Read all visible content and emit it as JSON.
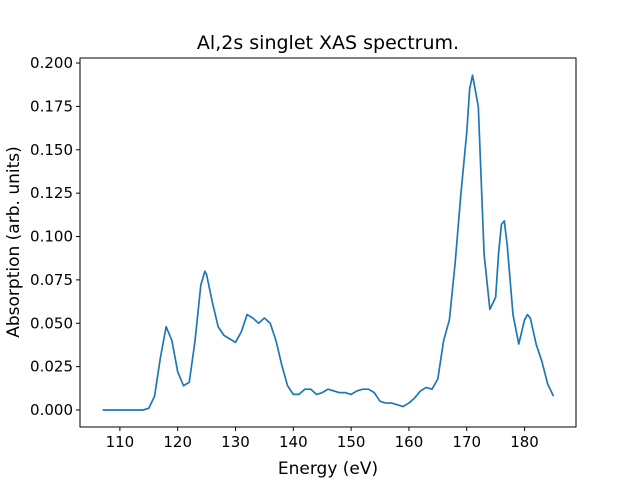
{
  "chart_data": {
    "type": "line",
    "title": "Al,2s singlet XAS spectrum.",
    "x_label": "Energy (eV)",
    "y_label": "Absorption (arb. units)",
    "xlim": [
      103.1,
      188.9
    ],
    "ylim": [
      -0.0098,
      0.2029
    ],
    "xticks": [
      110,
      120,
      130,
      140,
      150,
      160,
      170,
      180
    ],
    "yticks": [
      {
        "value": 0,
        "label": "0.000"
      },
      {
        "value": 0.025,
        "label": "0.025"
      },
      {
        "value": 0.05,
        "label": "0.050"
      },
      {
        "value": 0.075,
        "label": "0.075"
      },
      {
        "value": 0.1,
        "label": "0.100"
      },
      {
        "value": 0.125,
        "label": "0.125"
      },
      {
        "value": 0.15,
        "label": "0.150"
      },
      {
        "value": 0.175,
        "label": "0.175"
      },
      {
        "value": 0.2,
        "label": "0.200"
      }
    ],
    "x": [
      107,
      108,
      109,
      110,
      111,
      112,
      113,
      114,
      115,
      116,
      117,
      118,
      119,
      120,
      121,
      122,
      123,
      124,
      124.7,
      125,
      126,
      127,
      128,
      129,
      130,
      131,
      132,
      133,
      134,
      135,
      136,
      137,
      138,
      139,
      140,
      141,
      142,
      143,
      144,
      145,
      146,
      147,
      148,
      149,
      150,
      151,
      152,
      153,
      154,
      155,
      156,
      157,
      158,
      159,
      160,
      161,
      162,
      163,
      164,
      165,
      166,
      167,
      168,
      169,
      170,
      170.5,
      171,
      172,
      173,
      174,
      175,
      175.5,
      176,
      176.5,
      177,
      178,
      179,
      180,
      180.5,
      181,
      182,
      183,
      184,
      185
    ],
    "series": [
      {
        "color": "#1f77b4",
        "values": [
          0,
          0,
          0,
          0,
          0,
          0,
          0,
          0,
          0.001,
          0.008,
          0.03,
          0.048,
          0.04,
          0.022,
          0.014,
          0.016,
          0.04,
          0.072,
          0.08,
          0.078,
          0.062,
          0.048,
          0.043,
          0.041,
          0.039,
          0.045,
          0.055,
          0.053,
          0.05,
          0.053,
          0.05,
          0.04,
          0.026,
          0.014,
          0.009,
          0.009,
          0.012,
          0.012,
          0.009,
          0.01,
          0.012,
          0.011,
          0.01,
          0.01,
          0.009,
          0.011,
          0.012,
          0.012,
          0.01,
          0.005,
          0.004,
          0.004,
          0.003,
          0.002,
          0.004,
          0.007,
          0.011,
          0.013,
          0.012,
          0.018,
          0.04,
          0.052,
          0.085,
          0.125,
          0.16,
          0.185,
          0.193,
          0.175,
          0.09,
          0.058,
          0.065,
          0.09,
          0.107,
          0.109,
          0.095,
          0.055,
          0.038,
          0.052,
          0.055,
          0.053,
          0.038,
          0.028,
          0.015,
          0.008
        ]
      }
    ]
  }
}
